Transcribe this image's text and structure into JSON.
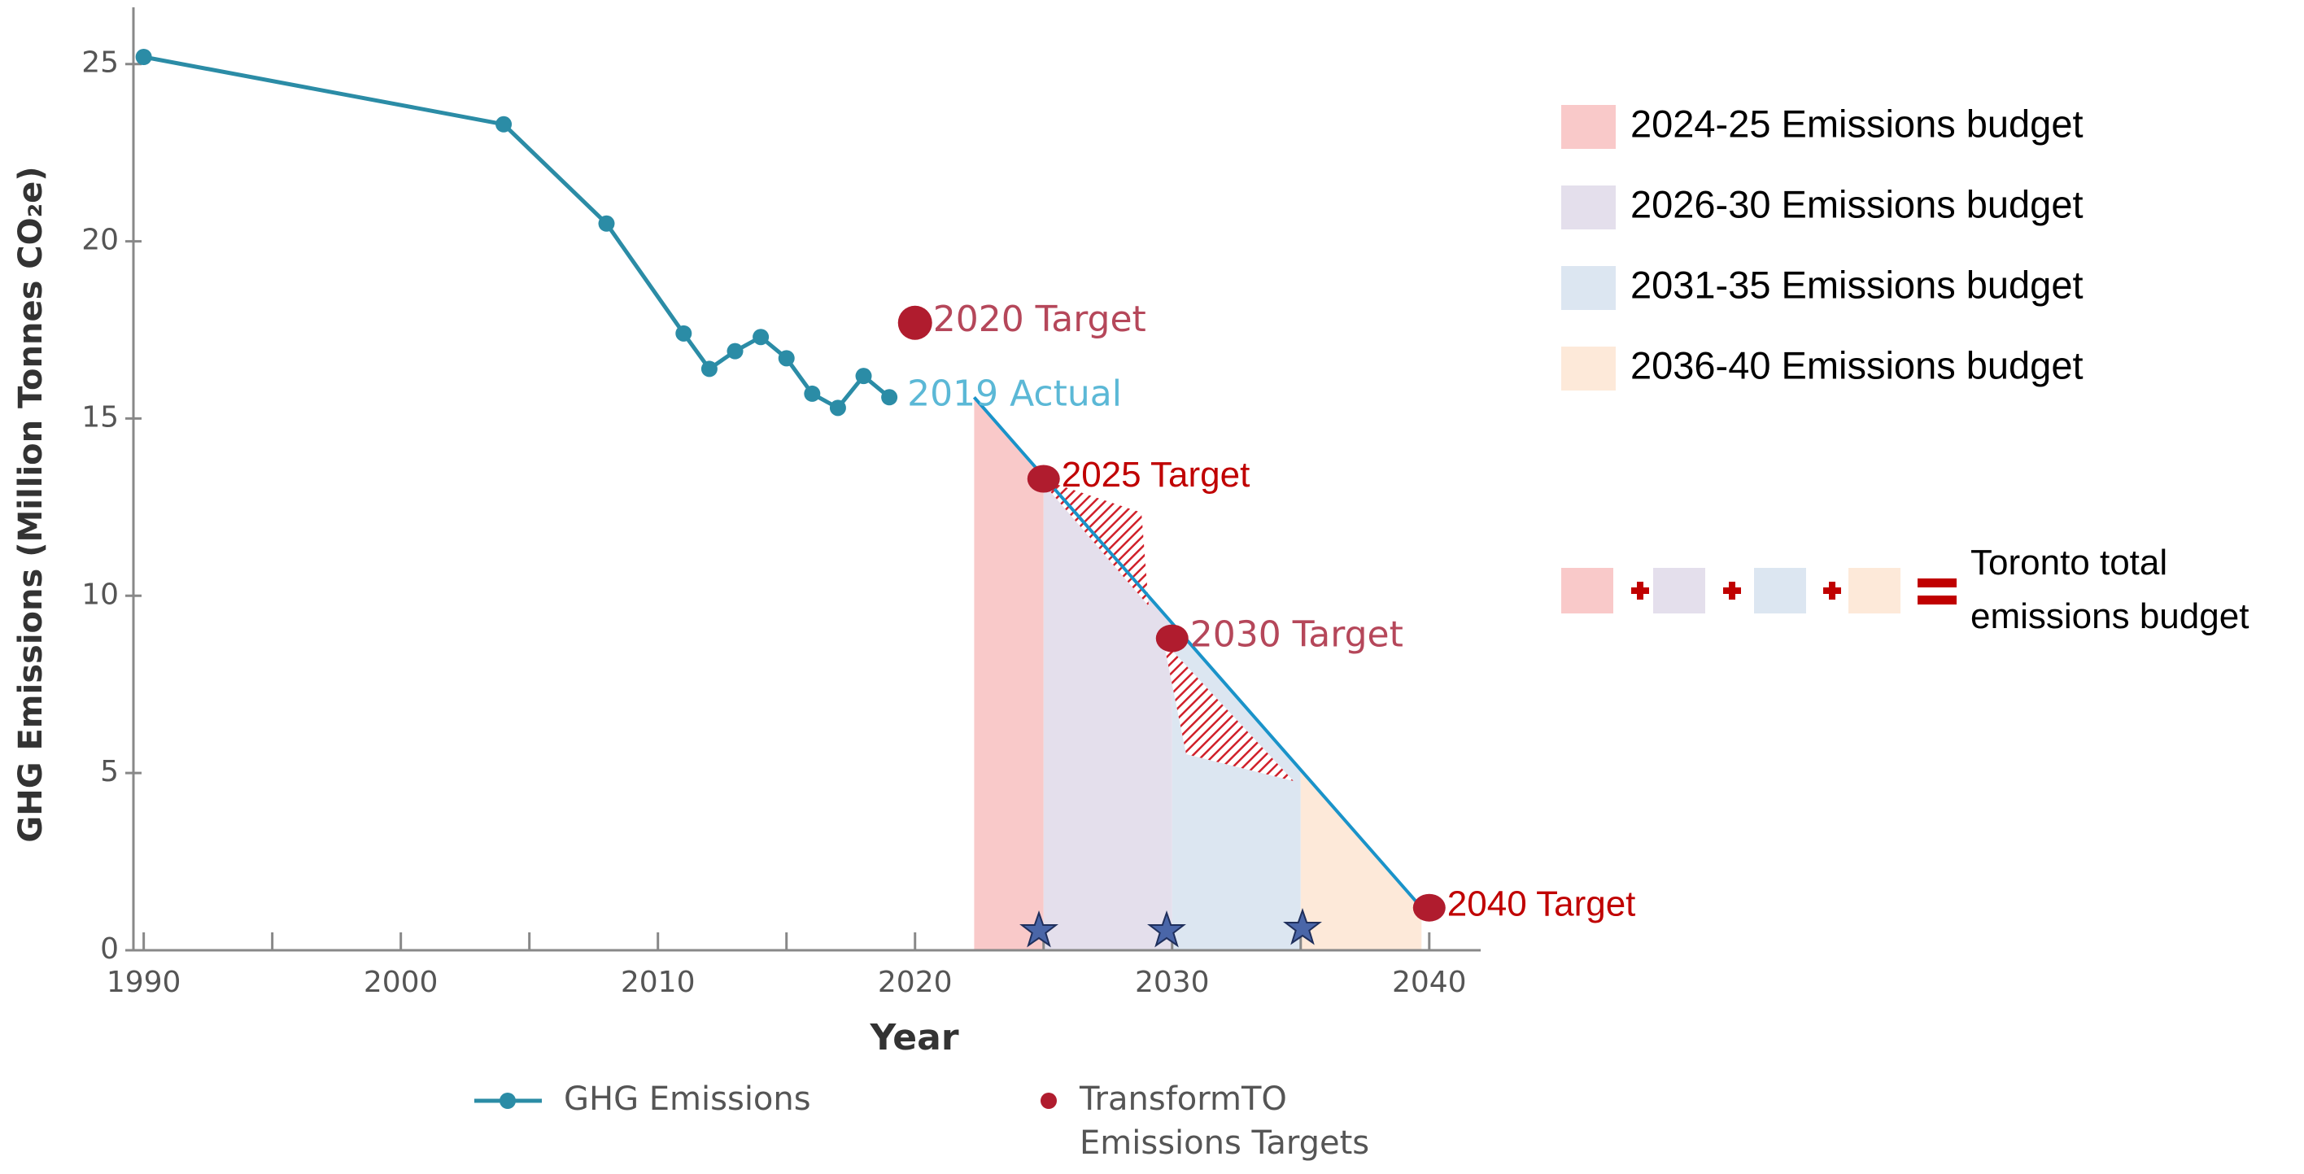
{
  "chart_data": {
    "type": "line",
    "y_label": "GHG Emissions (Million Tonnes CO₂e)",
    "x_label": "Year",
    "xlim": [
      1989.6,
      2042
    ],
    "ylim": [
      0,
      26.6
    ],
    "xticks": [
      1990,
      2000,
      2010,
      2020,
      2030,
      2040
    ],
    "yticks": [
      0,
      5,
      10,
      15,
      20,
      25
    ],
    "series": [
      {
        "name": "GHG Emissions",
        "color": "#2b8ca6",
        "x": [
          1990,
          2004,
          2008,
          2011,
          2012,
          2013,
          2014,
          2015,
          2016,
          2017,
          2018,
          2019
        ],
        "values": [
          25.2,
          23.3,
          20.5,
          17.4,
          16.4,
          16.9,
          17.3,
          16.7,
          15.7,
          15.3,
          16.2,
          15.6
        ]
      },
      {
        "name": "TransformTO Emissions Targets",
        "color": "#b01c2e",
        "x": [
          2020,
          2025,
          2030,
          2040
        ],
        "values": [
          17.7,
          13.3,
          8.8,
          1.2
        ],
        "labels": [
          "2020 Target",
          "2025 Target",
          "2030 Target",
          "2040 Target"
        ],
        "label_colors": [
          "#b5475a",
          "#c00000",
          "#b5475a",
          "#c00000"
        ]
      }
    ],
    "annotations": [
      {
        "text": "2019 Actual",
        "color": "#5bb8d6"
      }
    ],
    "pathway": {
      "color": "#1a93c9",
      "x": [
        2022.3,
        2039.7
      ],
      "values": [
        15.6,
        1.2
      ]
    },
    "budgets": [
      {
        "name": "2024-25 Emissions budget",
        "color": "#f9c9c9",
        "x": [
          2022.3,
          2025
        ]
      },
      {
        "name": "2026-30 Emissions budget",
        "color": "#e4dfec",
        "x": [
          2025,
          2030
        ]
      },
      {
        "name": "2031-35 Emissions budget",
        "color": "#dce6f1",
        "x": [
          2030,
          2035
        ]
      },
      {
        "name": "2036-40 Emissions budget",
        "color": "#fde9d9",
        "x": [
          2035,
          2039.7
        ]
      }
    ],
    "total_label": "Toronto total emissions budget"
  }
}
